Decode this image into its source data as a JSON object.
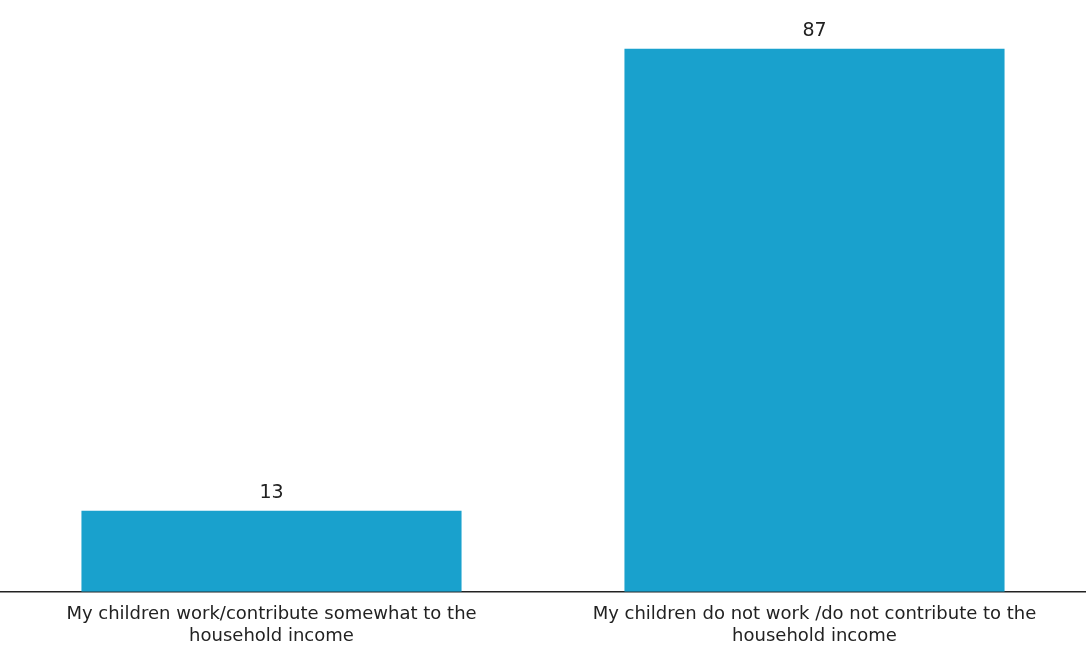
{
  "chart_data": {
    "type": "bar",
    "categories": [
      "My children work/contribute somewhat to the household income",
      "My children do not work /do not contribute to the household income"
    ],
    "values": [
      13,
      87
    ],
    "color": "#19a1cd",
    "data_labels": true,
    "grid": false,
    "legend": false
  }
}
